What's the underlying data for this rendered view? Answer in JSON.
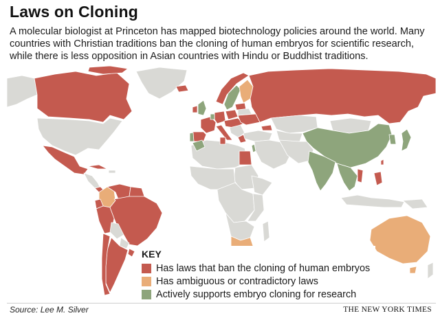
{
  "header": {
    "title": "Laws on Cloning",
    "dek": "A molecular biologist at Princeton has mapped biotechnology policies around the world. Many countries with Christian traditions ban the cloning of human embryos for scientific research, while there is less opposition in Asian countries with Hindu or Buddhist traditions."
  },
  "colors": {
    "ban": "#c45a4f",
    "ambiguous": "#e9ad78",
    "supports": "#8ea57c",
    "no_policy": "#d9d9d5",
    "border": "#ffffff"
  },
  "key": {
    "title": "KEY",
    "items": [
      {
        "label": "Has laws that ban the cloning of human embryos",
        "color": "#c45a4f"
      },
      {
        "label": "Has ambiguous or contradictory laws",
        "color": "#e9ad78"
      },
      {
        "label": "Actively supports embryo cloning for research",
        "color": "#8ea57c"
      }
    ]
  },
  "footer": {
    "source": "Source: Lee M. Silver",
    "credit": "THE NEW YORK TIMES"
  }
}
